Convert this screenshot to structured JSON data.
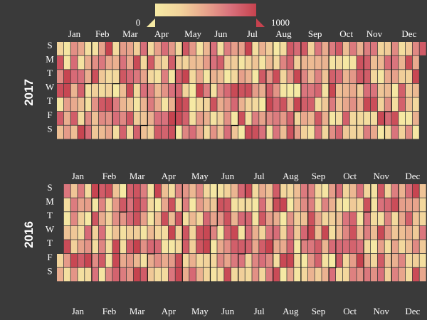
{
  "chart_data": {
    "type": "heatmap",
    "subtype": "calendar",
    "value_range": [
      0,
      1000
    ],
    "color_scale": [
      "#f6eaa4",
      "#f2d39b",
      "#e8a58c",
      "#d9707b",
      "#c6424e"
    ],
    "background_color": "#3a3a3a",
    "text_color": "#ffffff",
    "weekday_labels": [
      "S",
      "M",
      "T",
      "W",
      "T",
      "F",
      "S"
    ],
    "month_labels": [
      "Jan",
      "Feb",
      "Mar",
      "Apr",
      "May",
      "Jun",
      "Jul",
      "Aug",
      "Sep",
      "Oct",
      "Nov",
      "Dec"
    ],
    "legend": {
      "min_label": "0",
      "max_label": "1000",
      "placement": "top"
    },
    "years": [
      {
        "year": 2017,
        "label": "2017",
        "start_date": "2017-01-01",
        "days": 365,
        "value_seed": 7
      },
      {
        "year": 2016,
        "label": "2016",
        "start_date": "2016-01-01",
        "days": 366,
        "value_seed": 13
      }
    ]
  }
}
